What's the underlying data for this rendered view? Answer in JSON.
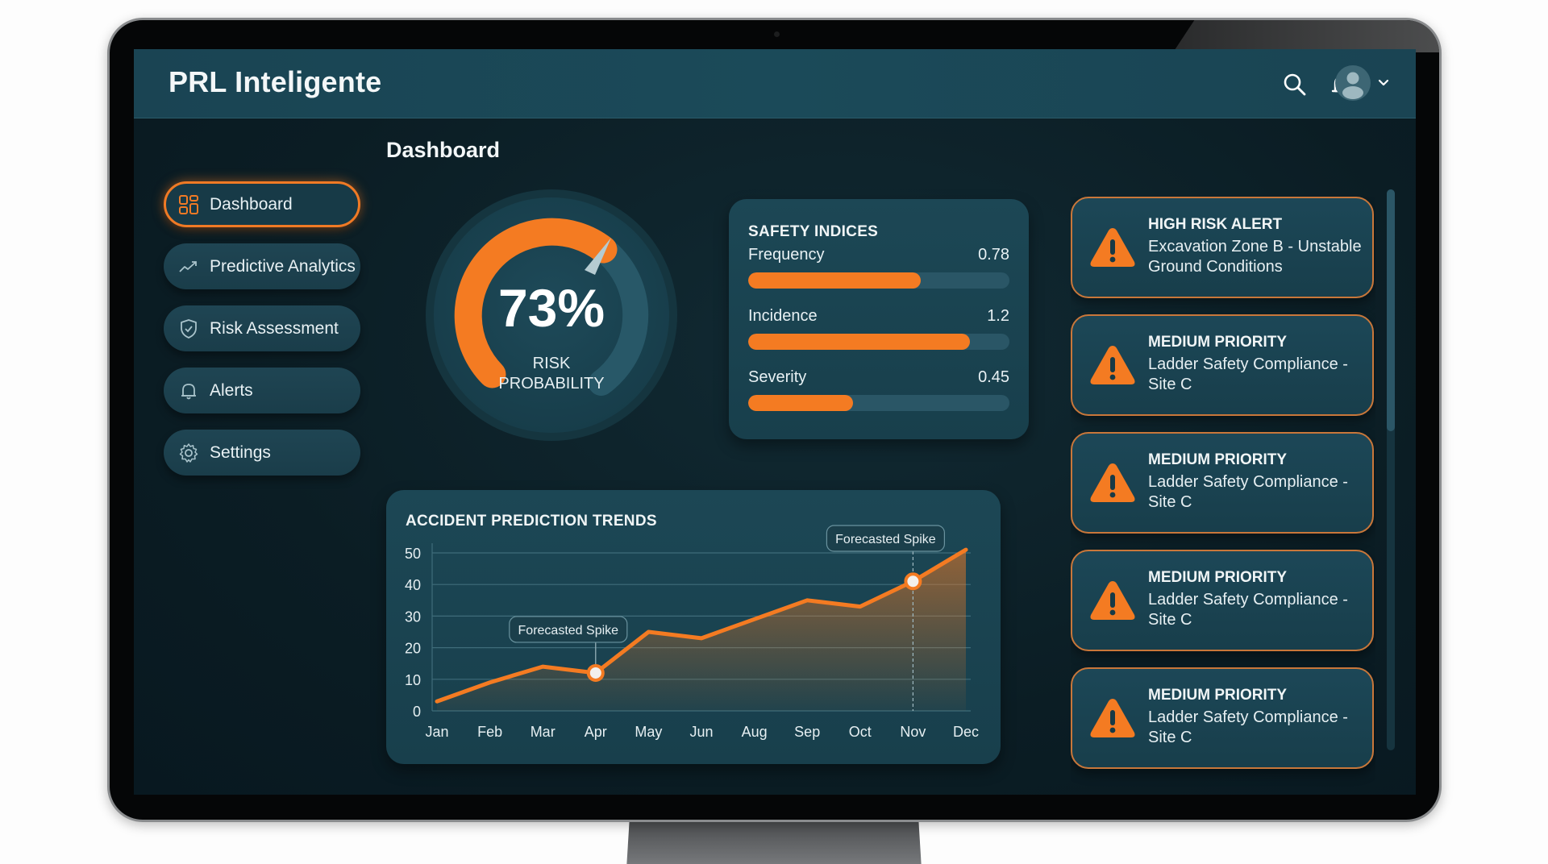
{
  "header": {
    "app_title": "PRL Inteligente",
    "icons": [
      "search-icon",
      "bell-icon",
      "avatar-icon",
      "chevron-down-icon"
    ],
    "notification_dot": true
  },
  "page": {
    "title": "Dashboard"
  },
  "sidebar": {
    "items": [
      {
        "label": "Dashboard",
        "icon": "grid-icon",
        "active": true
      },
      {
        "label": "Predictive Analytics",
        "icon": "trend-up-icon",
        "active": false
      },
      {
        "label": "Risk Assessment",
        "icon": "shield-check-icon",
        "active": false
      },
      {
        "label": "Alerts",
        "icon": "bell-icon",
        "active": false
      },
      {
        "label": "Settings",
        "icon": "gear-icon",
        "active": false
      }
    ]
  },
  "gauge": {
    "value": "73%",
    "percent": 73,
    "label_line1": "RISK",
    "label_line2": "PROBABILITY"
  },
  "safety_indices": {
    "title": "SAFETY INDICES",
    "rows": [
      {
        "label": "Frequency",
        "value": "0.78",
        "fill_pct": 66
      },
      {
        "label": "Incidence",
        "value": "1.2",
        "fill_pct": 85
      },
      {
        "label": "Severity",
        "value": "0.45",
        "fill_pct": 40
      }
    ]
  },
  "trends": {
    "title": "ACCIDENT PREDICTION TRENDS",
    "annotations": [
      {
        "label": "Forecasted Spike",
        "at": "Apr"
      },
      {
        "label": "Forecasted Spike",
        "at": "Nov"
      }
    ]
  },
  "chart_data": {
    "type": "line",
    "title": "ACCIDENT PREDICTION TRENDS",
    "categories": [
      "Jan",
      "Feb",
      "Mar",
      "Apr",
      "May",
      "Jun",
      "Aug",
      "Sep",
      "Oct",
      "Nov",
      "Dec"
    ],
    "series": [
      {
        "name": "Predicted accidents",
        "values": [
          3,
          9,
          14,
          12,
          25,
          23,
          29,
          35,
          33,
          41,
          51
        ]
      }
    ],
    "yticks": [
      0,
      10,
      20,
      30,
      40,
      50
    ],
    "ylim": [
      0,
      50
    ],
    "xlabel": "",
    "ylabel": "",
    "grid": true,
    "area_fill": true,
    "annotations": [
      {
        "text": "Forecasted Spike",
        "x": "Apr",
        "y": 12
      },
      {
        "text": "Forecasted Spike",
        "x": "Nov",
        "y": 41
      }
    ]
  },
  "alerts": [
    {
      "title": "HIGH RISK ALERT",
      "body": "Excavation Zone B - Unstable Ground Conditions",
      "icon": "warning-icon"
    },
    {
      "title": "MEDIUM PRIORITY",
      "body": "Ladder Safety Compliance - Site C",
      "icon": "warning-icon"
    },
    {
      "title": "MEDIUM PRIORITY",
      "body": "Ladder Safety Compliance - Site C",
      "icon": "warning-icon"
    },
    {
      "title": "MEDIUM PRIORITY",
      "body": "Ladder Safety Compliance - Site C",
      "icon": "warning-icon"
    },
    {
      "title": "MEDIUM PRIORITY",
      "body": "Ladder Safety Compliance - Site C",
      "icon": "warning-icon"
    }
  ],
  "colors": {
    "accent": "#f47b22",
    "header_bg": "#1b4a59",
    "card_bg": "#1a4351",
    "screen_bg": "#0b1d24",
    "alert_border": "#c9773a"
  }
}
